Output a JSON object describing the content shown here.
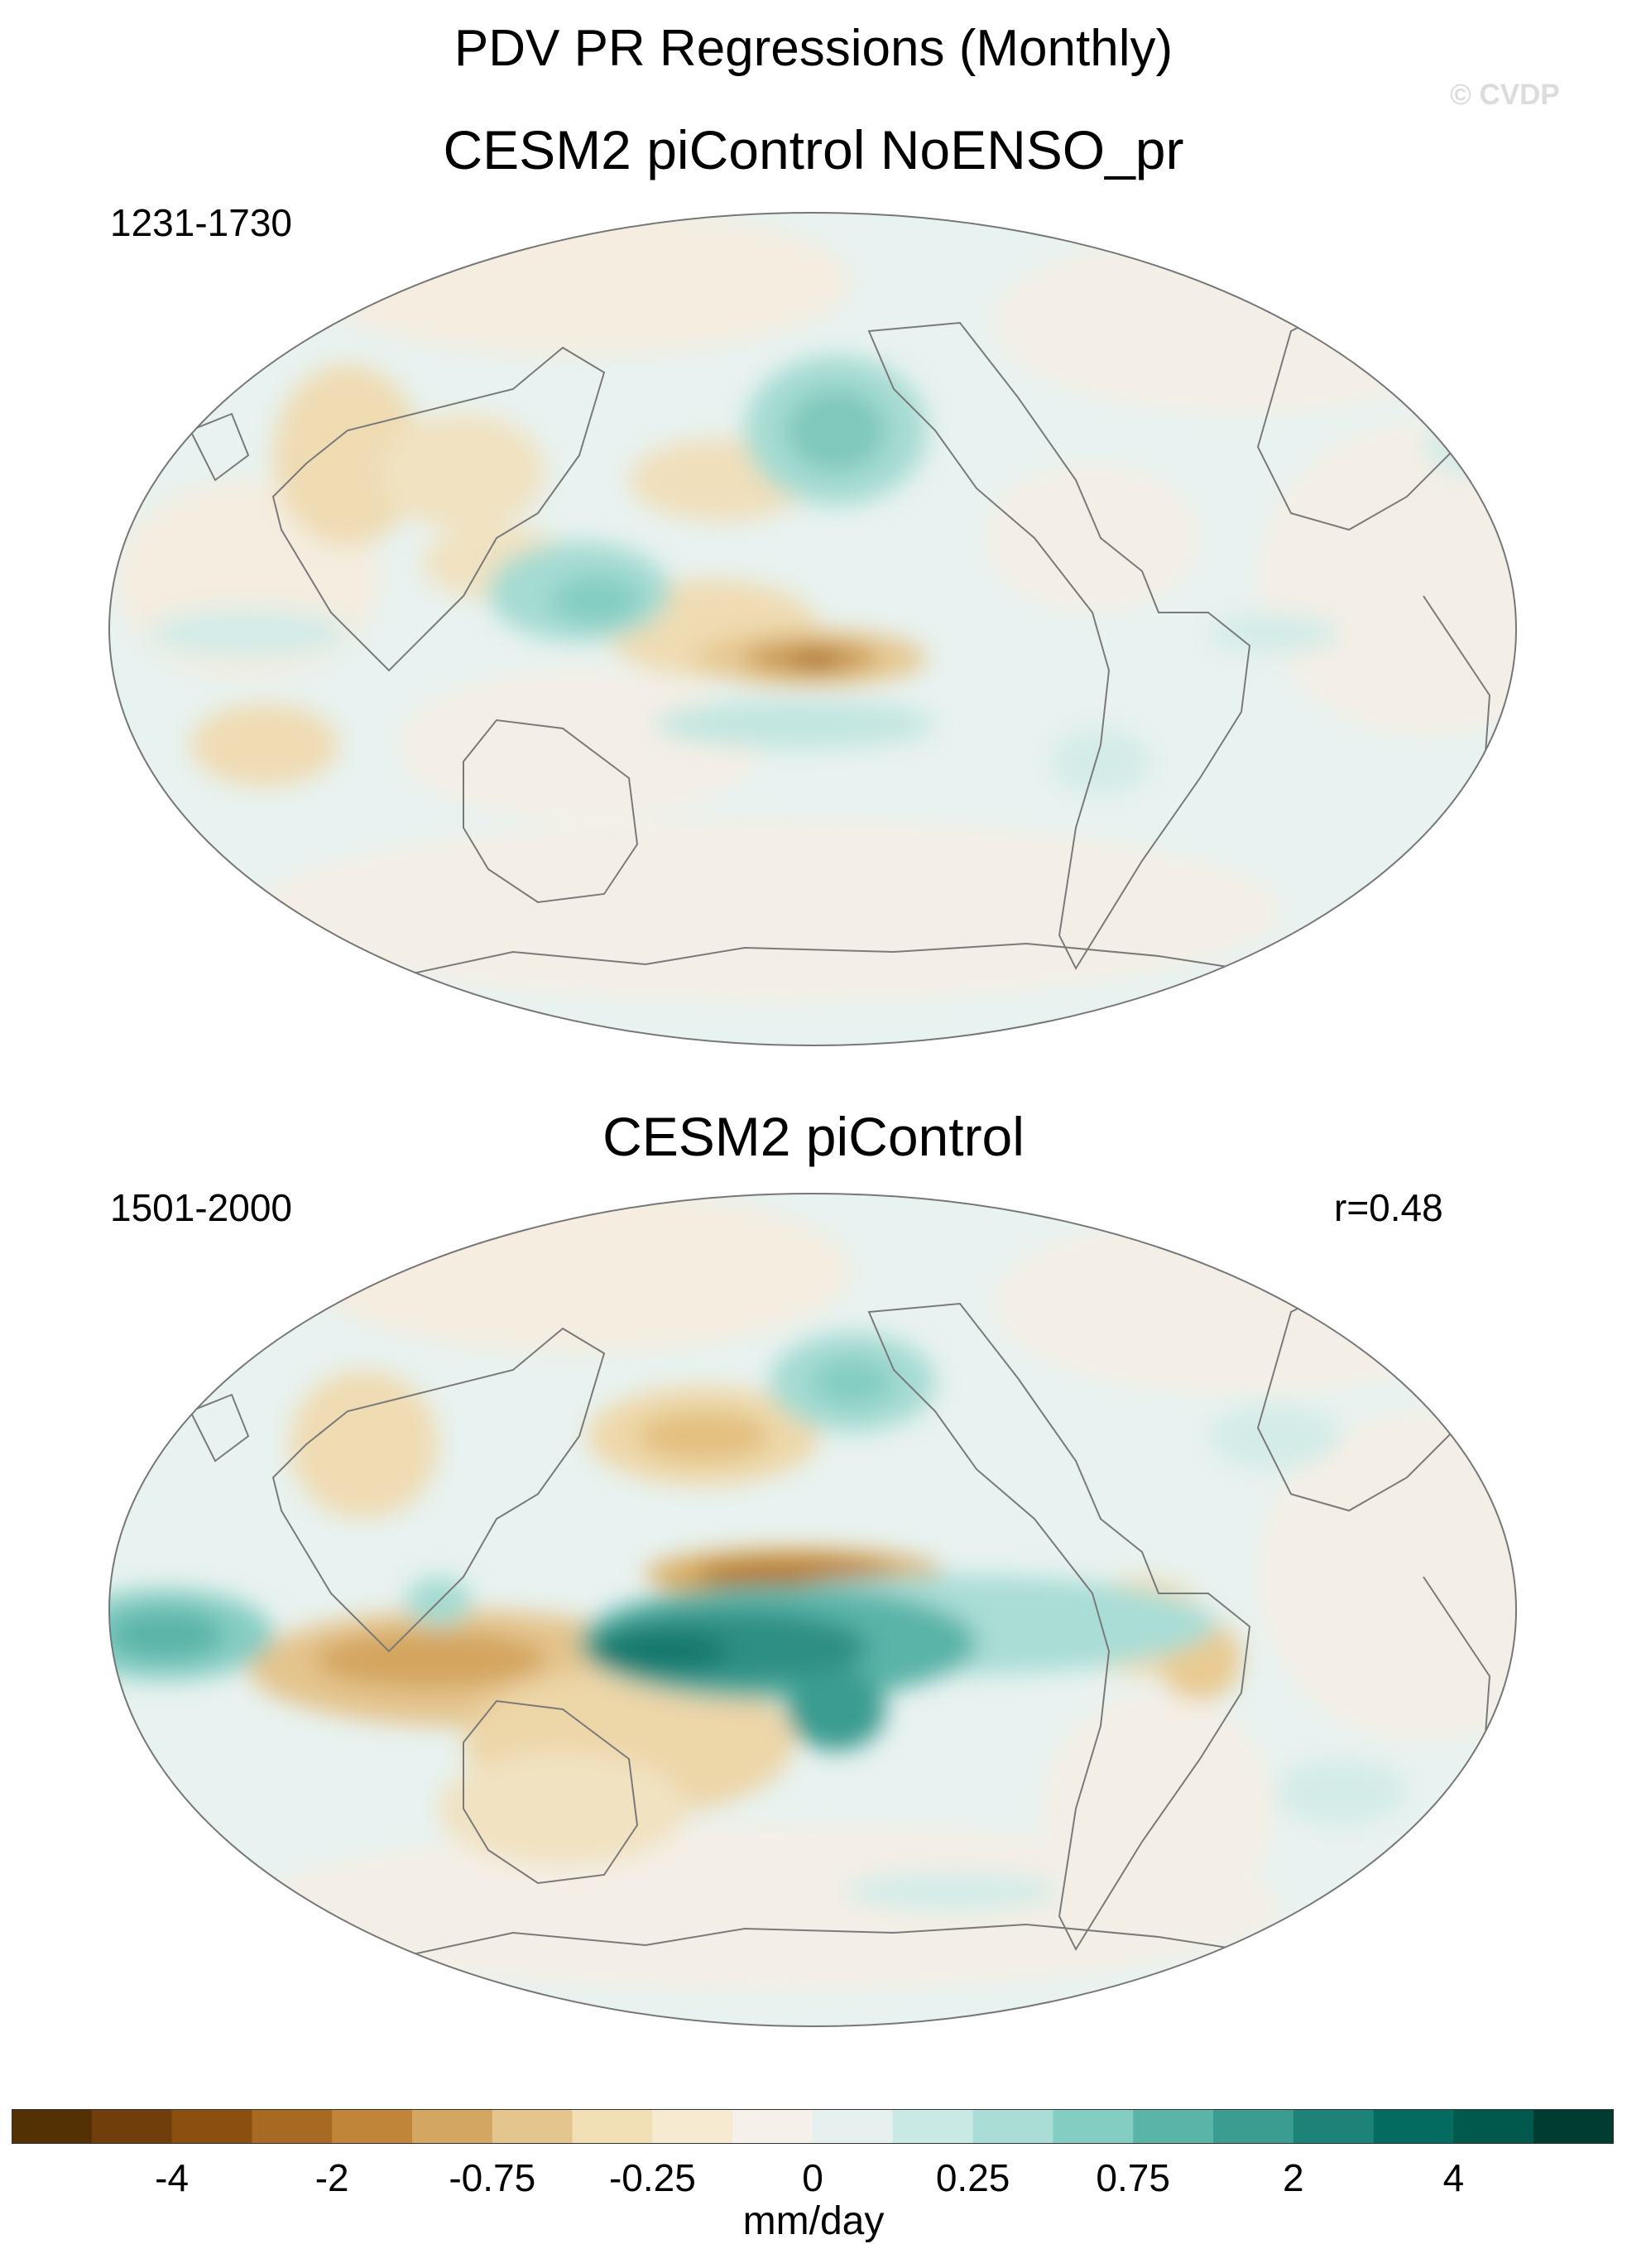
{
  "figure": {
    "title": "PDV PR Regressions (Monthly)",
    "watermark": "© CVDP"
  },
  "panels": [
    {
      "title": "CESM2 piControl NoENSO_pr",
      "period": "1231-1730",
      "stat": ""
    },
    {
      "title": "CESM2 piControl",
      "period": "1501-2000",
      "stat": "r=0.48"
    }
  ],
  "colorbar": {
    "units": "mm/day",
    "colors": [
      "#543005",
      "#6f3e0a",
      "#8b5010",
      "#a86a22",
      "#c08539",
      "#d3a661",
      "#e4c58e",
      "#f1dfb6",
      "#f6ead1",
      "#f5f1ea",
      "#e6f1ef",
      "#c9e9e4",
      "#a9ddd6",
      "#84cdc2",
      "#5ab4a8",
      "#3b9c91",
      "#1d8379",
      "#046b60",
      "#01584c",
      "#003c30"
    ],
    "tick_labels": [
      "-4",
      "-2",
      "-0.75",
      "-0.25",
      "0",
      "0.25",
      "0.75",
      "2",
      "4"
    ]
  },
  "map_style": {
    "ocean_fill": "#e7f1ef",
    "coast_color": "#7a7a7a"
  }
}
